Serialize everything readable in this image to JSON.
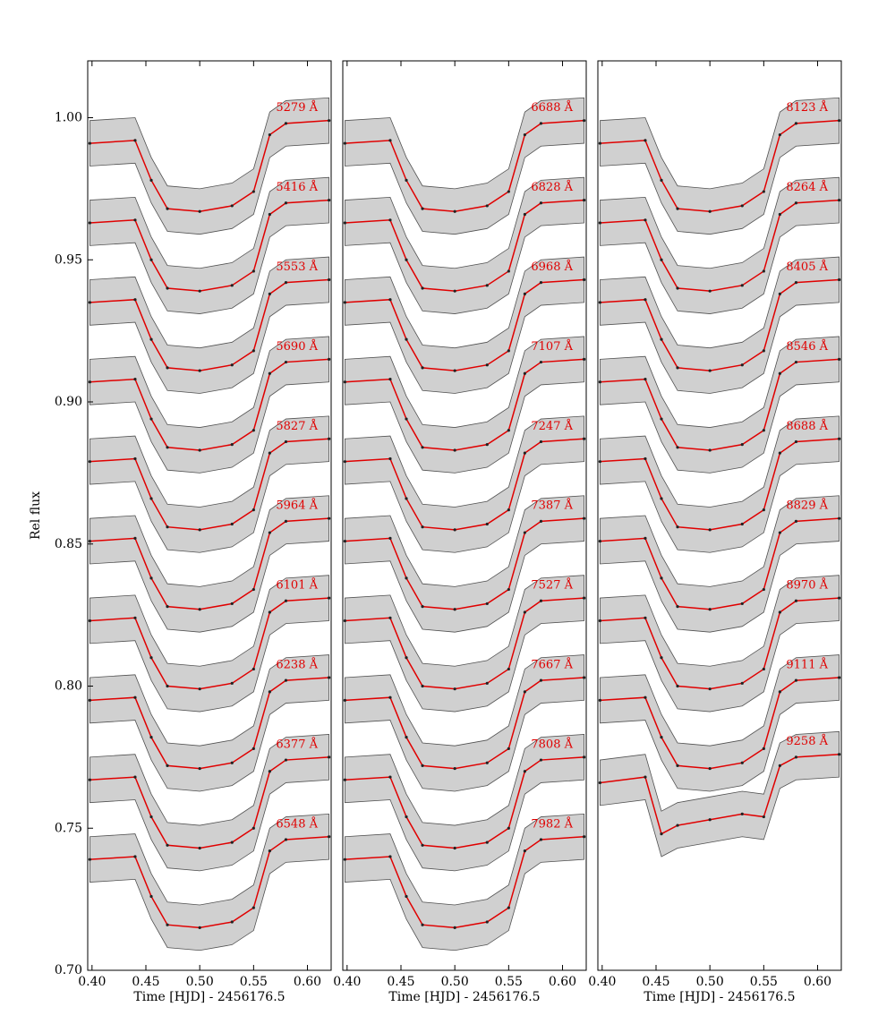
{
  "chart_data": [
    {
      "type": "line",
      "ylabel": "Rel flux",
      "xlabel": "Time [HJD] - 2456176.5",
      "x": [
        0.398,
        0.44,
        0.455,
        0.47,
        0.5,
        0.53,
        0.55,
        0.565,
        0.58,
        0.62
      ],
      "xlim": [
        0.396,
        0.622
      ],
      "ylim": [
        0.7,
        1.02
      ],
      "xticks": [
        {
          "value": 0.4,
          "label": "0.40"
        },
        {
          "value": 0.45,
          "label": "0.45"
        },
        {
          "value": 0.5,
          "label": "0.50"
        },
        {
          "value": 0.55,
          "label": "0.55"
        },
        {
          "value": 0.6,
          "label": "0.60"
        }
      ],
      "yticks": [
        {
          "value": 0.7,
          "label": "0.70"
        },
        {
          "value": 0.75,
          "label": "0.75"
        },
        {
          "value": 0.8,
          "label": "0.80"
        },
        {
          "value": 0.85,
          "label": "0.85"
        },
        {
          "value": 0.9,
          "label": "0.90"
        },
        {
          "value": 0.95,
          "label": "0.95"
        },
        {
          "value": 1.0,
          "label": "1.00"
        }
      ],
      "series": [
        {
          "name": "5279 Å",
          "color": "#e00000",
          "values": [
            0.991,
            0.992,
            0.978,
            0.968,
            0.967,
            0.969,
            0.974,
            0.994,
            0.998,
            0.999
          ]
        },
        {
          "name": "5416 Å",
          "color": "#e00000",
          "values": [
            0.963,
            0.964,
            0.95,
            0.94,
            0.939,
            0.941,
            0.946,
            0.966,
            0.97,
            0.971
          ]
        },
        {
          "name": "5553 Å",
          "color": "#e00000",
          "values": [
            0.935,
            0.936,
            0.922,
            0.912,
            0.911,
            0.913,
            0.918,
            0.938,
            0.942,
            0.943
          ]
        },
        {
          "name": "5690 Å",
          "color": "#e00000",
          "values": [
            0.907,
            0.908,
            0.894,
            0.884,
            0.883,
            0.885,
            0.89,
            0.91,
            0.914,
            0.915
          ]
        },
        {
          "name": "5827 Å",
          "color": "#e00000",
          "values": [
            0.879,
            0.88,
            0.866,
            0.856,
            0.855,
            0.857,
            0.862,
            0.882,
            0.886,
            0.887
          ]
        },
        {
          "name": "5964 Å",
          "color": "#e00000",
          "values": [
            0.851,
            0.852,
            0.838,
            0.828,
            0.827,
            0.829,
            0.834,
            0.854,
            0.858,
            0.859
          ]
        },
        {
          "name": "6101 Å",
          "color": "#e00000",
          "values": [
            0.823,
            0.824,
            0.81,
            0.8,
            0.799,
            0.801,
            0.806,
            0.826,
            0.83,
            0.831
          ]
        },
        {
          "name": "6238 Å",
          "color": "#e00000",
          "values": [
            0.795,
            0.796,
            0.782,
            0.772,
            0.771,
            0.773,
            0.778,
            0.798,
            0.802,
            0.803
          ]
        },
        {
          "name": "6377 Å",
          "color": "#e00000",
          "values": [
            0.767,
            0.768,
            0.754,
            0.744,
            0.743,
            0.745,
            0.75,
            0.77,
            0.774,
            0.775
          ]
        },
        {
          "name": "6548 Å",
          "color": "#e00000",
          "values": [
            0.739,
            0.74,
            0.726,
            0.716,
            0.715,
            0.717,
            0.722,
            0.742,
            0.746,
            0.747
          ]
        }
      ]
    },
    {
      "type": "line",
      "xlabel": "Time [HJD] - 2456176.5",
      "x": [
        0.398,
        0.44,
        0.455,
        0.47,
        0.5,
        0.53,
        0.55,
        0.565,
        0.58,
        0.62
      ],
      "xlim": [
        0.396,
        0.622
      ],
      "ylim": [
        0.7,
        1.02
      ],
      "xticks": [
        {
          "value": 0.4,
          "label": "0.40"
        },
        {
          "value": 0.45,
          "label": "0.45"
        },
        {
          "value": 0.5,
          "label": "0.50"
        },
        {
          "value": 0.55,
          "label": "0.55"
        },
        {
          "value": 0.6,
          "label": "0.60"
        }
      ],
      "series": [
        {
          "name": "6688 Å",
          "color": "#e00000",
          "values": [
            0.991,
            0.992,
            0.978,
            0.968,
            0.967,
            0.969,
            0.974,
            0.994,
            0.998,
            0.999
          ]
        },
        {
          "name": "6828 Å",
          "color": "#e00000",
          "values": [
            0.963,
            0.964,
            0.95,
            0.94,
            0.939,
            0.941,
            0.946,
            0.966,
            0.97,
            0.971
          ]
        },
        {
          "name": "6968 Å",
          "color": "#e00000",
          "values": [
            0.935,
            0.936,
            0.922,
            0.912,
            0.911,
            0.913,
            0.918,
            0.938,
            0.942,
            0.943
          ]
        },
        {
          "name": "7107 Å",
          "color": "#e00000",
          "values": [
            0.907,
            0.908,
            0.894,
            0.884,
            0.883,
            0.885,
            0.89,
            0.91,
            0.914,
            0.915
          ]
        },
        {
          "name": "7247 Å",
          "color": "#e00000",
          "values": [
            0.879,
            0.88,
            0.866,
            0.856,
            0.855,
            0.857,
            0.862,
            0.882,
            0.886,
            0.887
          ]
        },
        {
          "name": "7387 Å",
          "color": "#e00000",
          "values": [
            0.851,
            0.852,
            0.838,
            0.828,
            0.827,
            0.829,
            0.834,
            0.854,
            0.858,
            0.859
          ]
        },
        {
          "name": "7527 Å",
          "color": "#e00000",
          "values": [
            0.823,
            0.824,
            0.81,
            0.8,
            0.799,
            0.801,
            0.806,
            0.826,
            0.83,
            0.831
          ]
        },
        {
          "name": "7667 Å",
          "color": "#e00000",
          "values": [
            0.795,
            0.796,
            0.782,
            0.772,
            0.771,
            0.773,
            0.778,
            0.798,
            0.802,
            0.803
          ]
        },
        {
          "name": "7808 Å",
          "color": "#e00000",
          "values": [
            0.767,
            0.768,
            0.754,
            0.744,
            0.743,
            0.745,
            0.75,
            0.77,
            0.774,
            0.775
          ]
        },
        {
          "name": "7982 Å",
          "color": "#e00000",
          "values": [
            0.739,
            0.74,
            0.726,
            0.716,
            0.715,
            0.717,
            0.722,
            0.742,
            0.746,
            0.747
          ]
        }
      ]
    },
    {
      "type": "line",
      "xlabel": "Time [HJD] - 2456176.5",
      "x": [
        0.398,
        0.44,
        0.455,
        0.47,
        0.5,
        0.53,
        0.55,
        0.565,
        0.58,
        0.62
      ],
      "xlim": [
        0.396,
        0.622
      ],
      "ylim": [
        0.7,
        1.02
      ],
      "xticks": [
        {
          "value": 0.4,
          "label": "0.40"
        },
        {
          "value": 0.45,
          "label": "0.45"
        },
        {
          "value": 0.5,
          "label": "0.50"
        },
        {
          "value": 0.55,
          "label": "0.55"
        },
        {
          "value": 0.6,
          "label": "0.60"
        }
      ],
      "series": [
        {
          "name": "8123 Å",
          "color": "#e00000",
          "values": [
            0.991,
            0.992,
            0.978,
            0.968,
            0.967,
            0.969,
            0.974,
            0.994,
            0.998,
            0.999
          ]
        },
        {
          "name": "8264 Å",
          "color": "#e00000",
          "values": [
            0.963,
            0.964,
            0.95,
            0.94,
            0.939,
            0.941,
            0.946,
            0.966,
            0.97,
            0.971
          ]
        },
        {
          "name": "8405 Å",
          "color": "#e00000",
          "values": [
            0.935,
            0.936,
            0.922,
            0.912,
            0.911,
            0.913,
            0.918,
            0.938,
            0.942,
            0.943
          ]
        },
        {
          "name": "8546 Å",
          "color": "#e00000",
          "values": [
            0.907,
            0.908,
            0.894,
            0.884,
            0.883,
            0.885,
            0.89,
            0.91,
            0.914,
            0.915
          ]
        },
        {
          "name": "8688 Å",
          "color": "#e00000",
          "values": [
            0.879,
            0.88,
            0.866,
            0.856,
            0.855,
            0.857,
            0.862,
            0.882,
            0.886,
            0.887
          ]
        },
        {
          "name": "8829 Å",
          "color": "#e00000",
          "values": [
            0.851,
            0.852,
            0.838,
            0.828,
            0.827,
            0.829,
            0.834,
            0.854,
            0.858,
            0.859
          ]
        },
        {
          "name": "8970 Å",
          "color": "#e00000",
          "values": [
            0.823,
            0.824,
            0.81,
            0.8,
            0.799,
            0.801,
            0.806,
            0.826,
            0.83,
            0.831
          ]
        },
        {
          "name": "9111 Å",
          "color": "#e00000",
          "values": [
            0.795,
            0.796,
            0.782,
            0.772,
            0.771,
            0.773,
            0.778,
            0.798,
            0.802,
            0.803
          ]
        },
        {
          "name": "9258 Å",
          "color": "#e00000",
          "values": [
            0.766,
            0.768,
            0.748,
            0.751,
            0.753,
            0.755,
            0.754,
            0.772,
            0.775,
            0.776
          ]
        }
      ]
    }
  ]
}
